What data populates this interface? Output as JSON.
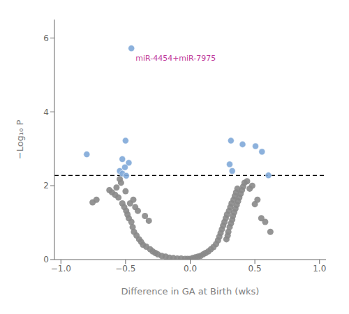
{
  "chart_data": {
    "type": "scatter",
    "xlabel": "Difference in GA at Birth (wks)",
    "ylabel": "−Log₁₀ P",
    "xlim": [
      -1.05,
      1.05
    ],
    "ylim": [
      0,
      6.5
    ],
    "xticks": [
      {
        "value": -1.0,
        "label": "−1.0"
      },
      {
        "value": -0.5,
        "label": "−0.5"
      },
      {
        "value": 0.0,
        "label": "0.0"
      },
      {
        "value": 0.5,
        "label": "0.5"
      },
      {
        "value": 1.0,
        "label": "1.0"
      }
    ],
    "yticks": [
      0,
      2,
      4,
      6
    ],
    "grid": false,
    "reference_lines": [
      {
        "y": 2.28,
        "color": "#000000",
        "line_style": "dashed"
      }
    ],
    "annotations": [
      {
        "text": "miR-4454+miR-7975",
        "x": -0.455,
        "y": 5.72,
        "color": "#c0399a"
      }
    ],
    "series": [
      {
        "color": "#888888",
        "x": [
          -0.755,
          -0.725,
          -0.625,
          -0.605,
          -0.58,
          -0.57,
          -0.555,
          -0.545,
          -0.535,
          -0.525,
          -0.51,
          -0.5,
          -0.495,
          -0.485,
          -0.475,
          -0.465,
          -0.455,
          -0.445,
          -0.44,
          -0.435,
          -0.425,
          -0.415,
          -0.405,
          -0.395,
          -0.38,
          -0.365,
          -0.35,
          -0.34,
          -0.32,
          -0.31,
          -0.29,
          -0.27,
          -0.25,
          -0.22,
          -0.19,
          -0.16,
          -0.13,
          -0.1,
          -0.07,
          -0.04,
          -0.02,
          0.0,
          0.02,
          0.04,
          0.06,
          0.08,
          0.1,
          0.12,
          0.14,
          0.16,
          0.18,
          0.2,
          0.215,
          0.225,
          0.235,
          0.245,
          0.255,
          0.265,
          0.275,
          0.28,
          0.285,
          0.29,
          0.295,
          0.3,
          0.305,
          0.31,
          0.315,
          0.32,
          0.325,
          0.33,
          0.335,
          0.34,
          0.345,
          0.35,
          0.355,
          0.36,
          0.365,
          0.37,
          0.38,
          0.39,
          0.4,
          0.41,
          0.42,
          0.44,
          0.46,
          0.48,
          0.5,
          0.52,
          0.55,
          0.58,
          0.62
        ],
        "values": [
          1.55,
          1.62,
          1.88,
          1.82,
          1.75,
          1.95,
          1.68,
          2.18,
          2.08,
          1.52,
          1.42,
          1.85,
          1.32,
          1.22,
          1.12,
          1.52,
          1.02,
          0.88,
          1.62,
          0.75,
          1.42,
          0.65,
          1.32,
          0.55,
          0.48,
          0.4,
          1.18,
          0.35,
          1.05,
          0.28,
          0.22,
          0.18,
          0.14,
          0.1,
          0.08,
          0.05,
          0.04,
          0.03,
          0.03,
          0.02,
          0.02,
          0.02,
          0.04,
          0.06,
          0.08,
          0.1,
          0.14,
          0.18,
          0.22,
          0.28,
          0.34,
          0.42,
          0.52,
          0.62,
          0.72,
          0.82,
          0.92,
          1.02,
          1.12,
          0.55,
          1.22,
          0.65,
          0.75,
          1.32,
          0.88,
          1.42,
          0.98,
          1.52,
          1.08,
          1.18,
          1.62,
          1.28,
          1.72,
          1.38,
          1.82,
          1.48,
          1.92,
          1.58,
          1.68,
          1.78,
          1.88,
          1.98,
          2.08,
          2.12,
          1.92,
          2.0,
          1.5,
          1.62,
          1.12,
          1.02,
          0.75
        ]
      },
      {
        "color": "#7fa8d8",
        "x": [
          -0.455,
          -0.8,
          -0.5,
          -0.525,
          -0.475,
          -0.505,
          -0.545,
          -0.525,
          -0.495,
          0.315,
          0.405,
          0.505,
          0.555,
          0.305,
          0.325,
          0.605
        ],
        "values": [
          5.72,
          2.85,
          3.22,
          2.72,
          2.62,
          2.5,
          2.4,
          2.33,
          2.27,
          3.22,
          3.12,
          3.07,
          2.92,
          2.58,
          2.4,
          2.28
        ]
      }
    ]
  }
}
